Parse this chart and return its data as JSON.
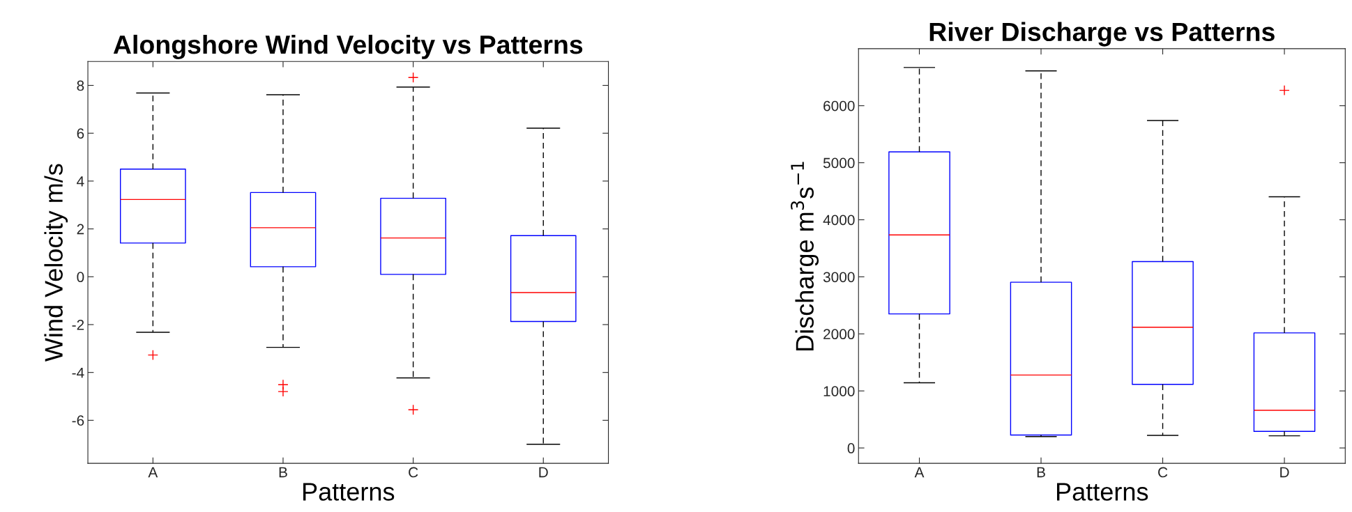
{
  "chart_data": [
    {
      "type": "box",
      "title": "Alongshore Wind Velocity vs Patterns",
      "xlabel": "Patterns",
      "ylabel": "Wind Velocity m/s",
      "categories": [
        "A",
        "B",
        "C",
        "D"
      ],
      "ylim": [
        -7.8,
        9
      ],
      "yticks": [
        -6,
        -4,
        -2,
        0,
        2,
        4,
        6,
        8
      ],
      "grid": false,
      "color": "#0000ff",
      "boxes": [
        {
          "low": -2.32,
          "q1": 1.41,
          "median": 3.23,
          "q3": 4.5,
          "high": 7.68,
          "outliers": [
            -3.27
          ]
        },
        {
          "low": -2.95,
          "q1": 0.42,
          "median": 2.05,
          "q3": 3.52,
          "high": 7.61,
          "outliers": [
            -4.51,
            -4.8
          ]
        },
        {
          "low": -4.23,
          "q1": 0.1,
          "median": 1.62,
          "q3": 3.28,
          "high": 7.93,
          "outliers": [
            8.33,
            -5.56
          ]
        },
        {
          "low": -7.0,
          "q1": -1.87,
          "median": -0.66,
          "q3": 1.72,
          "high": 6.21
        }
      ]
    },
    {
      "type": "box",
      "title": "River Discharge vs Patterns",
      "xlabel": "Patterns",
      "ylabel": "Discharge m$^{3}$s$^{−1}$",
      "categories": [
        "A",
        "B",
        "C",
        "D"
      ],
      "ylim": [
        -270,
        7000
      ],
      "yticks": [
        0,
        1000,
        2000,
        3000,
        4000,
        5000,
        6000
      ],
      "grid": false,
      "color": "#0000ff",
      "boxes": [
        {
          "low": 1143,
          "q1": 2350,
          "median": 3735,
          "q3": 5190,
          "high": 6670
        },
        {
          "low": 199,
          "q1": 227,
          "median": 1278,
          "q3": 2905,
          "high": 6610
        },
        {
          "low": 220,
          "q1": 1115,
          "median": 2116,
          "q3": 3267,
          "high": 5740
        },
        {
          "low": 213,
          "q1": 291,
          "median": 660,
          "q3": 2017,
          "high": 4403,
          "outliers": [
            6270
          ]
        }
      ]
    }
  ]
}
